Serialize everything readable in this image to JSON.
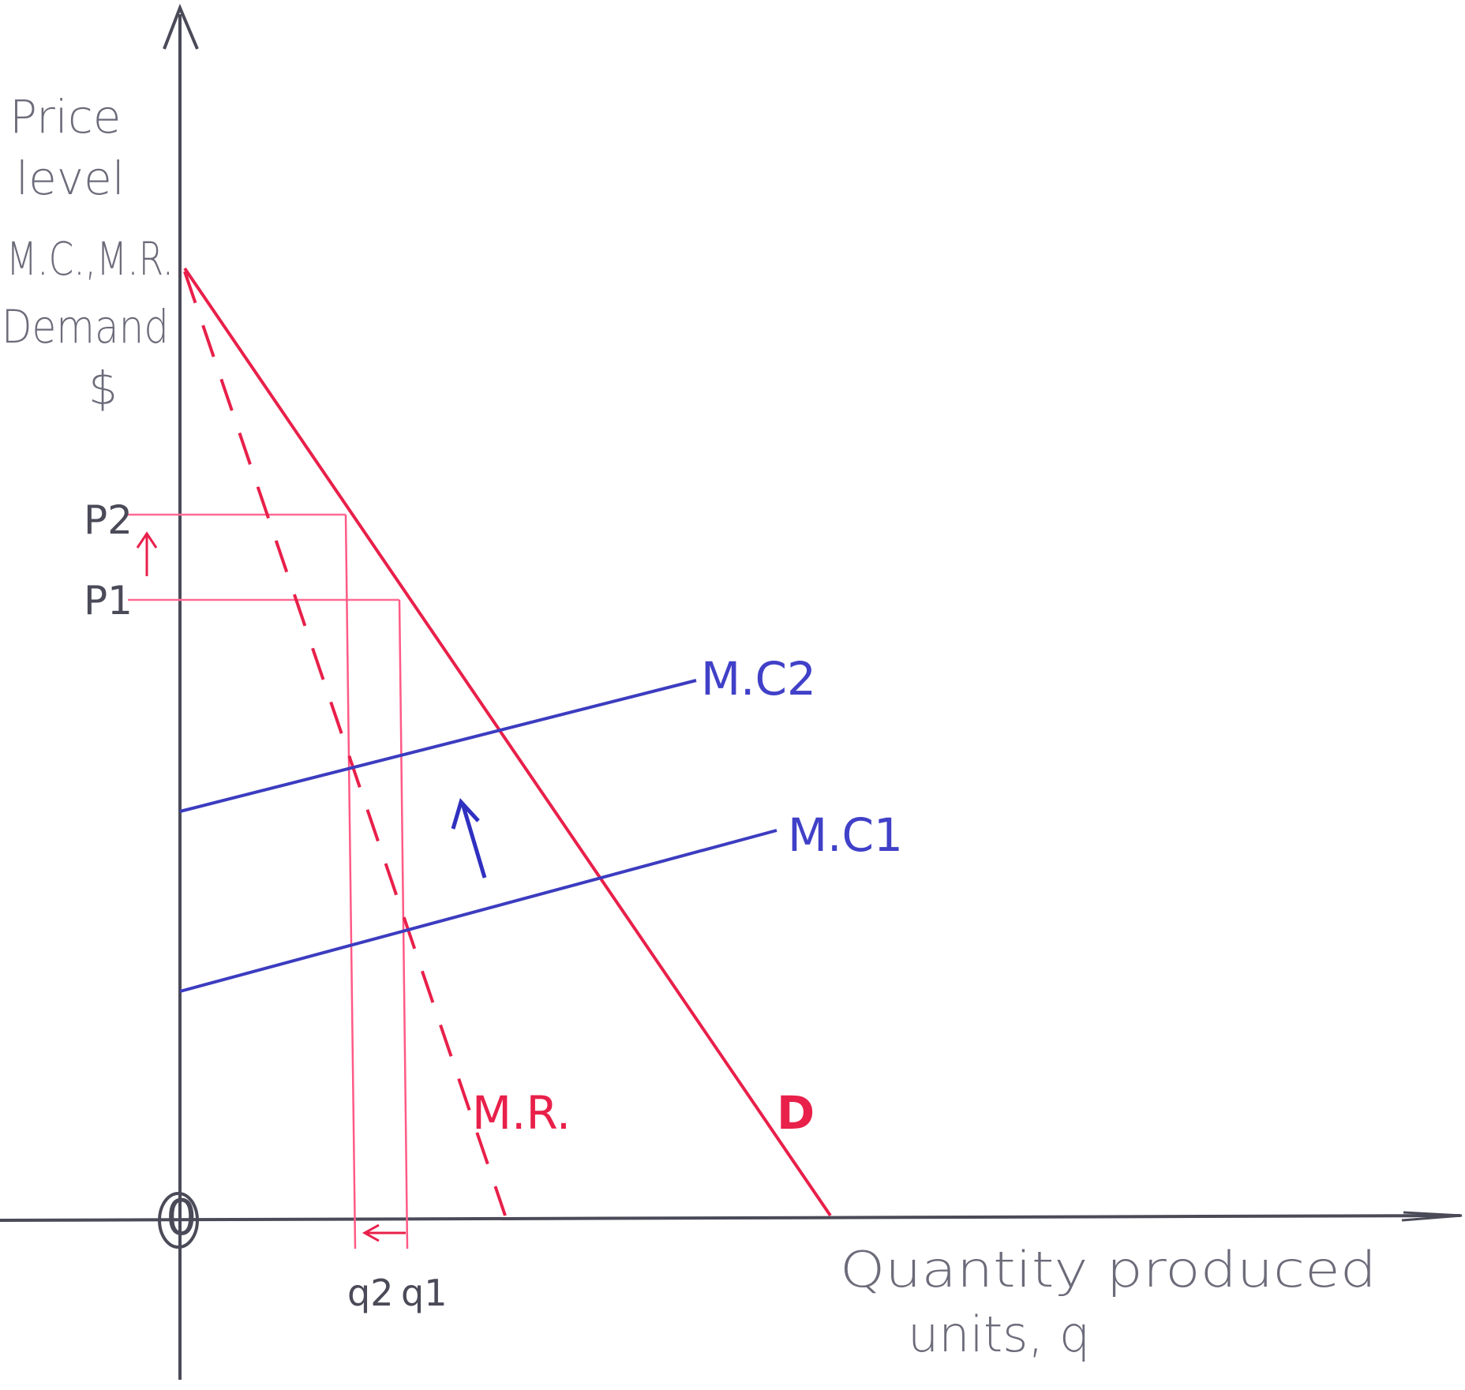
{
  "axes": {
    "y_label_lines": [
      "Price",
      "level",
      "M.C.,M.R.",
      "Demand",
      "$"
    ],
    "x_label_lines": [
      "Quantity produced",
      "units, q"
    ],
    "origin": "0"
  },
  "prices": {
    "p2": "P2",
    "p1": "P1"
  },
  "quantities": {
    "q2": "q2",
    "q1": "q1"
  },
  "curves": {
    "mc2": "M.C2",
    "mc1": "M.C1",
    "mr": "M.R.",
    "demand": "D"
  },
  "colors": {
    "axis": "#4a4a58",
    "demand": "#e8204a",
    "mr": "#e8204a",
    "marginal_cost": "#3c3cc0",
    "guide_lines": "#ff5a86",
    "arrow_price": "#e8204a",
    "arrow_mc": "#3030c0",
    "text": "#6b6b7a"
  },
  "annotations": {
    "price_shift_arrow": "up",
    "mc_shift_arrow": "up",
    "quantity_shift_arrow": "left"
  }
}
